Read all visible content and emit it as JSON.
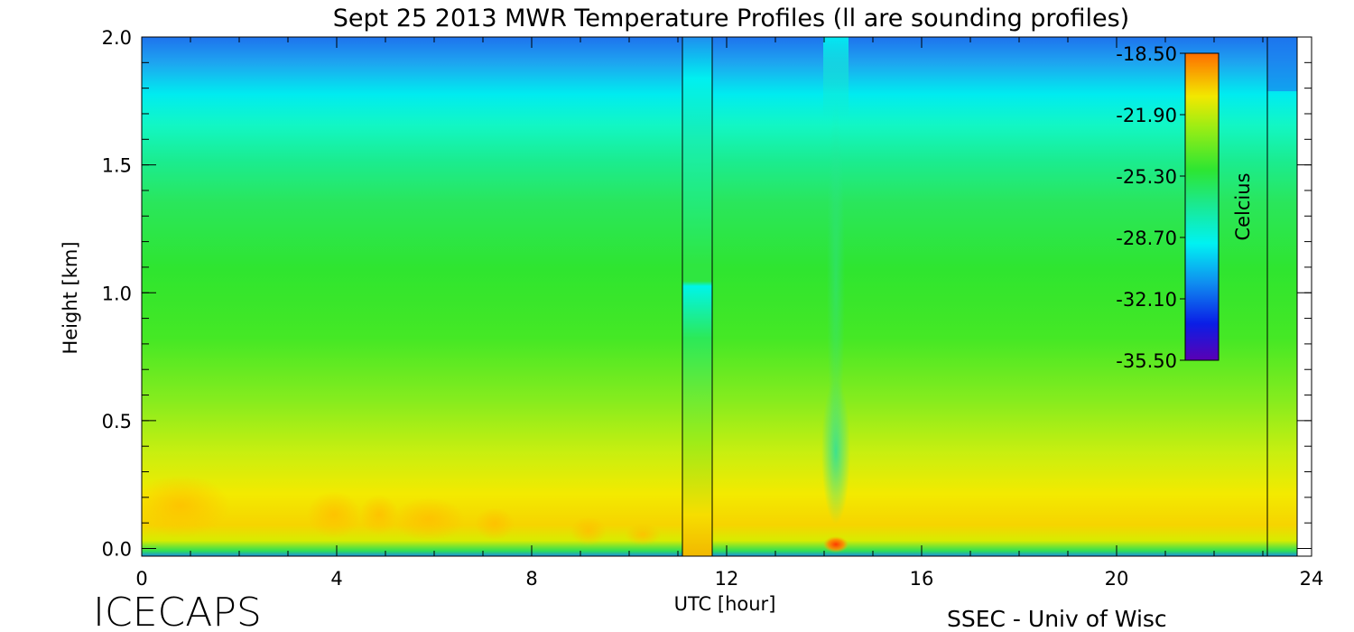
{
  "chart_data": {
    "type": "heatmap",
    "title": "Sept 25 2013 MWR Temperature Profiles (ll are sounding profiles)",
    "xlabel": "UTC [hour]",
    "ylabel": "Height [km]",
    "xlim": [
      0,
      24
    ],
    "ylim": [
      -0.03,
      2.0
    ],
    "x_ticks": [
      "0",
      "4",
      "8",
      "12",
      "16",
      "20",
      "24"
    ],
    "y_ticks": [
      "0.0",
      "0.5",
      "1.0",
      "1.5",
      "2.0"
    ],
    "colorbar": {
      "label": "Celcius",
      "ticks": [
        "-18.50",
        "-21.90",
        "-25.30",
        "-28.70",
        "-32.10",
        "-35.50"
      ],
      "range": [
        -35.5,
        -18.5
      ]
    },
    "sounding_profiles_utc": [
      11.2,
      23.2
    ],
    "temperature_profile_km_celsius": [
      {
        "height": 0.0,
        "temp": -25.5
      },
      {
        "height": 0.03,
        "temp": -23.5
      },
      {
        "height": 0.1,
        "temp": -20.5
      },
      {
        "height": 0.2,
        "temp": -20.8
      },
      {
        "height": 0.5,
        "temp": -23.0
      },
      {
        "height": 0.8,
        "temp": -25.0
      },
      {
        "height": 1.0,
        "temp": -25.5
      },
      {
        "height": 1.3,
        "temp": -26.8
      },
      {
        "height": 1.5,
        "temp": -27.3
      },
      {
        "height": 1.7,
        "temp": -28.6
      },
      {
        "height": 1.85,
        "temp": -29.8
      },
      {
        "height": 2.0,
        "temp": -31.0
      }
    ]
  },
  "footer": {
    "brand": "ICECAPS",
    "credit": "SSEC - Univ of Wisc"
  },
  "colors": {
    "warm": "#ff8c00",
    "yellow": "#f5e600",
    "green": "#2de632",
    "cyan": "#00ffff",
    "blue": "#1e6ef5"
  }
}
